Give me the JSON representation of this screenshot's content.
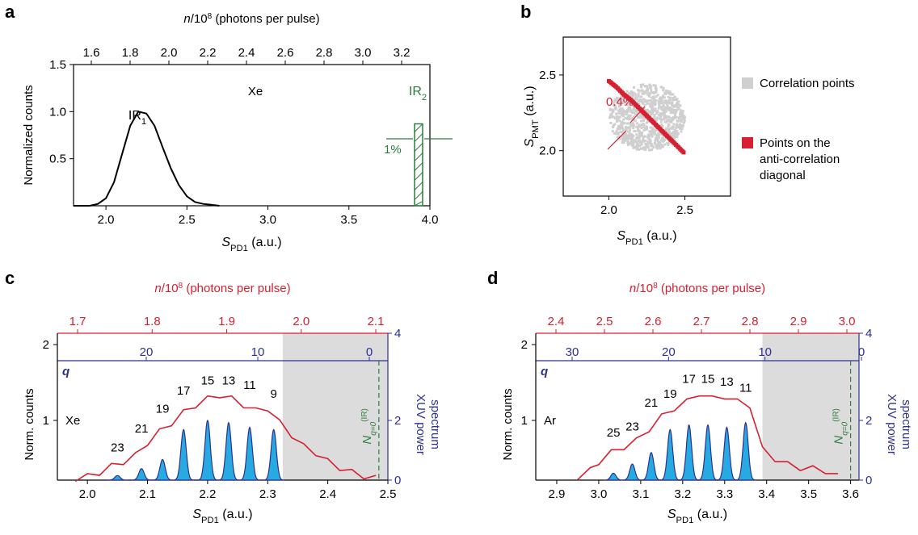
{
  "panels": {
    "a": "a",
    "b": "b",
    "c": "c",
    "d": "d"
  },
  "colors": {
    "red": "#d62031",
    "blue": "#2e3192",
    "green": "#2e7d3e",
    "cyan": "#27aae1",
    "grey": "#cfcfcf",
    "shade": "#dcdcdc"
  },
  "legend": {
    "corr": "Correlation points",
    "anti1": "Points on the",
    "anti2": "anti-correlation",
    "anti3": "diagonal"
  },
  "chart_data": [
    {
      "id": "a",
      "type": "line",
      "xlabel": "S_PD1 (a.u.)",
      "ylabel": "Normalized counts",
      "top_axis_label": "n/10^8 (photons per pulse)",
      "xlim": [
        1.8,
        4.0
      ],
      "ylim": [
        0.0,
        1.5
      ],
      "xticks": [
        "2.0",
        "2.5",
        "3.0",
        "3.5",
        "4.0"
      ],
      "yticks": [
        "0.5",
        "1.0",
        "1.5"
      ],
      "top_ticks": [
        "1.6",
        "1.8",
        "2.0",
        "2.2",
        "2.4",
        "2.6",
        "2.8",
        "3.0",
        "3.2"
      ],
      "annotations": [
        "IR1",
        "Xe",
        "IR2",
        "1%"
      ],
      "series": [
        {
          "x": [
            1.8,
            1.9,
            1.95,
            2.0,
            2.05,
            2.1,
            2.15,
            2.2,
            2.25,
            2.3,
            2.35,
            2.4,
            2.45,
            2.5,
            2.55,
            2.6,
            2.65,
            2.7
          ],
          "y": [
            0.0,
            0.0,
            0.02,
            0.08,
            0.25,
            0.55,
            0.85,
            1.0,
            0.98,
            0.85,
            0.62,
            0.4,
            0.22,
            0.1,
            0.04,
            0.02,
            0.01,
            0.0
          ]
        }
      ],
      "ir2_bar": {
        "x": 3.93,
        "height": 0.87
      }
    },
    {
      "id": "b",
      "type": "scatter",
      "xlabel": "S_PD1 (a.u.)",
      "ylabel": "S_PMT (a.u.)",
      "xticks": [
        "2.0",
        "2.5"
      ],
      "yticks": [
        "2.0",
        "2.5"
      ],
      "xlim": [
        1.7,
        2.8
      ],
      "ylim": [
        1.7,
        2.75
      ],
      "annotation": "0.4%",
      "series": [
        {
          "name": "Correlation points",
          "center": [
            2.25,
            2.22
          ],
          "spread": [
            0.25,
            0.22
          ]
        },
        {
          "name": "Points on the anti-correlation diagonal",
          "x": [
            2.0,
            2.05,
            2.1,
            2.15,
            2.2,
            2.25,
            2.3,
            2.35,
            2.4,
            2.45,
            2.5
          ],
          "y": [
            2.46,
            2.42,
            2.37,
            2.33,
            2.28,
            2.23,
            2.18,
            2.13,
            2.08,
            2.03,
            1.98
          ]
        }
      ]
    },
    {
      "id": "c",
      "type": "line",
      "xlabel": "S_PD1 (a.u.)",
      "ylabel": "Norm. counts",
      "ylabel_right1": "XUV power",
      "ylabel_right2": "spectrum",
      "top_axis_label": "n/10^8 (photons per pulse)",
      "q_label": "q",
      "gas": "Xe",
      "n_label": "N",
      "xlim": [
        1.95,
        2.5
      ],
      "ylim": [
        0,
        2
      ],
      "xticks": [
        "2.0",
        "2.1",
        "2.2",
        "2.3",
        "2.4",
        "2.5"
      ],
      "yticks": [
        "1",
        "2"
      ],
      "rticks": [
        "0",
        "2",
        "4"
      ],
      "top_ticks": [
        "1.7",
        "1.8",
        "1.9",
        "2.0",
        "2.1"
      ],
      "q_ticks": [
        "20",
        "10",
        "0"
      ],
      "harmonics": [
        "23",
        "21",
        "19",
        "17",
        "15",
        "13",
        "11",
        "9"
      ],
      "shade_from": 2.325,
      "cutoff_x": 2.485,
      "red_series": {
        "x": [
          1.98,
          2.0,
          2.02,
          2.04,
          2.06,
          2.08,
          2.1,
          2.12,
          2.14,
          2.16,
          2.18,
          2.2,
          2.22,
          2.24,
          2.26,
          2.28,
          2.3,
          2.32,
          2.34,
          2.36,
          2.38,
          2.4,
          2.42,
          2.44,
          2.46,
          2.48
        ],
        "y": [
          0.02,
          0.05,
          0.12,
          0.22,
          0.3,
          0.4,
          0.62,
          0.8,
          0.95,
          1.12,
          1.25,
          1.35,
          1.42,
          1.35,
          1.25,
          1.15,
          1.2,
          0.95,
          0.75,
          0.55,
          0.45,
          0.3,
          0.2,
          0.12,
          0.06,
          0.02
        ]
      },
      "peaks": {
        "x": [
          2.05,
          2.09,
          2.125,
          2.16,
          2.2,
          2.235,
          2.27,
          2.31
        ],
        "h": [
          0.1,
          0.25,
          0.45,
          1.1,
          1.3,
          1.25,
          1.15,
          1.1
        ]
      }
    },
    {
      "id": "d",
      "type": "line",
      "xlabel": "S_PD1 (a.u.)",
      "ylabel": "Norm. counts",
      "ylabel_right1": "XUV power",
      "ylabel_right2": "spectrum",
      "top_axis_label": "n/10^8 (photons per pulse)",
      "q_label": "q",
      "gas": "Ar",
      "n_label": "N",
      "xlim": [
        2.85,
        3.62
      ],
      "ylim": [
        0,
        2
      ],
      "xticks": [
        "2.9",
        "3.0",
        "3.1",
        "3.2",
        "3.3",
        "3.4",
        "3.5",
        "3.6"
      ],
      "yticks": [
        "1",
        "2"
      ],
      "rticks": [
        "0",
        "2",
        "4"
      ],
      "top_ticks": [
        "2.4",
        "2.5",
        "2.6",
        "2.7",
        "2.8",
        "2.9",
        "3.0"
      ],
      "q_ticks": [
        "30",
        "20",
        "10",
        "0"
      ],
      "harmonics": [
        "25",
        "23",
        "21",
        "19",
        "17",
        "15",
        "13",
        "11"
      ],
      "shade_from": 3.39,
      "cutoff_x": 3.6,
      "red_series": {
        "x": [
          2.95,
          2.98,
          3.0,
          3.03,
          3.06,
          3.09,
          3.12,
          3.15,
          3.18,
          3.21,
          3.24,
          3.27,
          3.3,
          3.33,
          3.36,
          3.39,
          3.42,
          3.45,
          3.48,
          3.51,
          3.54,
          3.57
        ],
        "y": [
          0.05,
          0.15,
          0.3,
          0.45,
          0.55,
          0.65,
          0.85,
          1.05,
          1.2,
          1.3,
          1.45,
          1.35,
          1.4,
          1.3,
          1.25,
          0.5,
          0.35,
          0.25,
          0.2,
          0.18,
          0.15,
          0.05
        ]
      },
      "peaks": {
        "x": [
          3.035,
          3.08,
          3.125,
          3.17,
          3.215,
          3.26,
          3.305,
          3.35
        ],
        "h": [
          0.15,
          0.35,
          0.6,
          1.1,
          1.2,
          1.2,
          1.15,
          1.25
        ]
      }
    }
  ]
}
